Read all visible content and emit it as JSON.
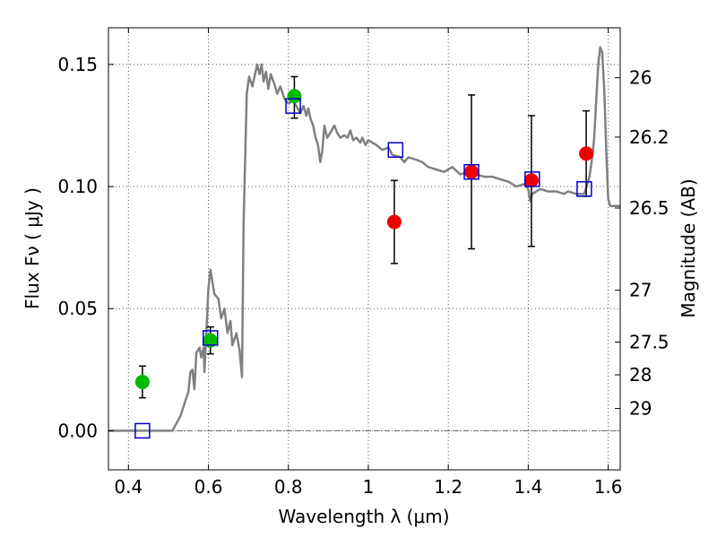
{
  "chart_data": {
    "type": "scatter",
    "xlabel": "Wavelength  λ (μm)",
    "ylabel_left": "Flux  Fν  ( μJy )",
    "ylabel_right": "Magnitude (AB)",
    "xlim": [
      0.35,
      1.63
    ],
    "ylim": [
      -0.016,
      0.165
    ],
    "grid": true,
    "x_ticks": [
      {
        "value": 0.4,
        "label": "0.4"
      },
      {
        "value": 0.6,
        "label": "0.6"
      },
      {
        "value": 0.8,
        "label": "0.8"
      },
      {
        "value": 1.0,
        "label": "1"
      },
      {
        "value": 1.2,
        "label": "1.2"
      },
      {
        "value": 1.4,
        "label": "1.4"
      },
      {
        "value": 1.6,
        "label": "1.6"
      }
    ],
    "y_ticks": [
      {
        "value": 0.0,
        "label": "0.00"
      },
      {
        "value": 0.05,
        "label": "0.05"
      },
      {
        "value": 0.1,
        "label": "0.10"
      },
      {
        "value": 0.15,
        "label": "0.15"
      }
    ],
    "right_ticks": [
      {
        "value": 26.0,
        "label": "26"
      },
      {
        "value": 26.2,
        "label": "26.2"
      },
      {
        "value": 26.5,
        "label": "26.5"
      },
      {
        "value": 27.0,
        "label": "27"
      },
      {
        "value": 27.5,
        "label": "27.5"
      },
      {
        "value": 28.0,
        "label": "28"
      },
      {
        "value": 29.0,
        "label": "29"
      }
    ],
    "colors": {
      "spectrum": "#808080",
      "green_points": "#00bb00",
      "red_points": "#ee0000",
      "model_squares": "#0000cc",
      "error_bars": "#000000",
      "zero_line": "#666666"
    },
    "spectrum": [
      [
        0.35,
        0.0
      ],
      [
        0.51,
        0.0
      ],
      [
        0.53,
        0.006
      ],
      [
        0.55,
        0.016
      ],
      [
        0.555,
        0.024
      ],
      [
        0.56,
        0.025
      ],
      [
        0.565,
        0.017
      ],
      [
        0.57,
        0.032
      ],
      [
        0.578,
        0.034
      ],
      [
        0.582,
        0.03
      ],
      [
        0.588,
        0.034
      ],
      [
        0.59,
        0.024
      ],
      [
        0.6,
        0.058
      ],
      [
        0.605,
        0.066
      ],
      [
        0.615,
        0.056
      ],
      [
        0.625,
        0.054
      ],
      [
        0.632,
        0.046
      ],
      [
        0.64,
        0.05
      ],
      [
        0.648,
        0.04
      ],
      [
        0.655,
        0.045
      ],
      [
        0.66,
        0.035
      ],
      [
        0.67,
        0.04
      ],
      [
        0.678,
        0.033
      ],
      [
        0.684,
        0.022
      ],
      [
        0.688,
        0.085
      ],
      [
        0.696,
        0.138
      ],
      [
        0.702,
        0.145
      ],
      [
        0.71,
        0.141
      ],
      [
        0.718,
        0.147
      ],
      [
        0.722,
        0.15
      ],
      [
        0.728,
        0.146
      ],
      [
        0.733,
        0.15
      ],
      [
        0.738,
        0.143
      ],
      [
        0.744,
        0.147
      ],
      [
        0.75,
        0.14
      ],
      [
        0.756,
        0.146
      ],
      [
        0.765,
        0.142
      ],
      [
        0.772,
        0.138
      ],
      [
        0.78,
        0.141
      ],
      [
        0.79,
        0.136
      ],
      [
        0.8,
        0.134
      ],
      [
        0.812,
        0.135
      ],
      [
        0.82,
        0.133
      ],
      [
        0.83,
        0.13
      ],
      [
        0.838,
        0.133
      ],
      [
        0.845,
        0.129
      ],
      [
        0.85,
        0.132
      ],
      [
        0.855,
        0.128
      ],
      [
        0.862,
        0.125
      ],
      [
        0.868,
        0.12
      ],
      [
        0.874,
        0.117
      ],
      [
        0.88,
        0.11
      ],
      [
        0.885,
        0.115
      ],
      [
        0.89,
        0.125
      ],
      [
        0.897,
        0.12
      ],
      [
        0.905,
        0.122
      ],
      [
        0.915,
        0.125
      ],
      [
        0.922,
        0.122
      ],
      [
        0.93,
        0.12
      ],
      [
        0.94,
        0.121
      ],
      [
        0.948,
        0.12
      ],
      [
        0.955,
        0.123
      ],
      [
        0.962,
        0.119
      ],
      [
        0.97,
        0.12
      ],
      [
        0.98,
        0.118
      ],
      [
        0.985,
        0.12
      ],
      [
        0.993,
        0.117
      ],
      [
        1.0,
        0.119
      ],
      [
        1.01,
        0.118
      ],
      [
        1.02,
        0.117
      ],
      [
        1.035,
        0.115
      ],
      [
        1.05,
        0.116
      ],
      [
        1.06,
        0.113
      ],
      [
        1.08,
        0.112
      ],
      [
        1.09,
        0.11
      ],
      [
        1.1,
        0.112
      ],
      [
        1.12,
        0.111
      ],
      [
        1.135,
        0.11
      ],
      [
        1.15,
        0.108
      ],
      [
        1.17,
        0.107
      ],
      [
        1.19,
        0.106
      ],
      [
        1.21,
        0.108
      ],
      [
        1.23,
        0.105
      ],
      [
        1.25,
        0.106
      ],
      [
        1.27,
        0.105
      ],
      [
        1.29,
        0.104
      ],
      [
        1.31,
        0.104
      ],
      [
        1.33,
        0.103
      ],
      [
        1.35,
        0.102
      ],
      [
        1.37,
        0.1
      ],
      [
        1.39,
        0.101
      ],
      [
        1.4,
        0.099
      ],
      [
        1.405,
        0.094
      ],
      [
        1.41,
        0.097
      ],
      [
        1.43,
        0.099
      ],
      [
        1.45,
        0.098
      ],
      [
        1.47,
        0.098
      ],
      [
        1.49,
        0.097
      ],
      [
        1.5,
        0.098
      ],
      [
        1.52,
        0.097
      ],
      [
        1.54,
        0.097
      ],
      [
        1.553,
        0.104
      ],
      [
        1.56,
        0.112
      ],
      [
        1.565,
        0.12
      ],
      [
        1.57,
        0.135
      ],
      [
        1.575,
        0.15
      ],
      [
        1.58,
        0.157
      ],
      [
        1.585,
        0.155
      ],
      [
        1.59,
        0.14
      ],
      [
        1.595,
        0.115
      ],
      [
        1.6,
        0.095
      ],
      [
        1.605,
        0.092
      ],
      [
        1.63,
        0.092
      ]
    ],
    "observed_points": [
      {
        "x": 0.435,
        "y": 0.02,
        "yerr": [
          0.0135,
          0.0265
        ],
        "color": "green"
      },
      {
        "x": 0.605,
        "y": 0.037,
        "yerr": [
          0.0315,
          0.0425
        ],
        "color": "green"
      },
      {
        "x": 0.815,
        "y": 0.137,
        "yerr": [
          0.128,
          0.145
        ],
        "color": "green"
      },
      {
        "x": 1.065,
        "y": 0.0855,
        "yerr": [
          0.0685,
          0.1025
        ],
        "color": "red"
      },
      {
        "x": 1.258,
        "y": 0.106,
        "yerr": [
          0.0745,
          0.1375
        ],
        "color": "red"
      },
      {
        "x": 1.408,
        "y": 0.1025,
        "yerr": [
          0.0755,
          0.129
        ],
        "color": "red"
      },
      {
        "x": 1.545,
        "y": 0.1135,
        "yerr": [
          0.096,
          0.131
        ],
        "color": "red"
      }
    ],
    "model_points": [
      {
        "x": 0.435,
        "y": 0.0
      },
      {
        "x": 0.605,
        "y": 0.038
      },
      {
        "x": 0.812,
        "y": 0.133
      },
      {
        "x": 1.068,
        "y": 0.115
      },
      {
        "x": 1.258,
        "y": 0.106
      },
      {
        "x": 1.41,
        "y": 0.103
      },
      {
        "x": 1.54,
        "y": 0.099
      }
    ]
  }
}
